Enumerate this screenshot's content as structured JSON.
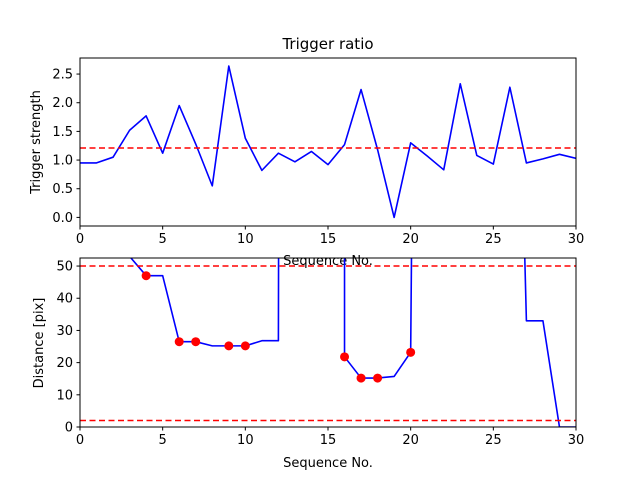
{
  "chart_data": [
    {
      "type": "line",
      "title": "Trigger ratio",
      "xlabel": "Sequence No.",
      "ylabel": "Trigger strength",
      "xlim": [
        0,
        30
      ],
      "ylim": [
        -0.15,
        2.78
      ],
      "xticks": [
        "0",
        "5",
        "10",
        "15",
        "20",
        "25",
        "30"
      ],
      "yticks": [
        "0.0",
        "0.5",
        "1.0",
        "1.5",
        "2.0",
        "2.5"
      ],
      "grid": false,
      "series": [
        {
          "color": "#0000ff",
          "x": [
            0,
            1,
            2,
            3,
            4,
            5,
            6,
            7,
            8,
            9,
            10,
            11,
            12,
            13,
            14,
            15,
            16,
            17,
            18,
            19,
            20,
            21,
            22,
            23,
            24,
            25,
            26,
            27,
            28,
            29,
            30
          ],
          "y": [
            0.95,
            0.95,
            1.05,
            1.52,
            1.77,
            1.12,
            1.95,
            1.28,
            0.55,
            2.64,
            1.38,
            0.82,
            1.12,
            0.97,
            1.15,
            0.92,
            1.27,
            2.23,
            1.18,
            0.0,
            1.3,
            1.07,
            0.83,
            2.33,
            1.08,
            0.93,
            2.27,
            0.95,
            1.02,
            1.1,
            1.03
          ]
        }
      ],
      "hlines": [
        {
          "y": 1.21,
          "color": "#ff0000",
          "style": "dashed"
        }
      ]
    },
    {
      "type": "line",
      "title": "",
      "xlabel": "Sequence No.",
      "ylabel": "Distance [pix]",
      "xlim": [
        0,
        30
      ],
      "ylim": [
        0,
        52.5
      ],
      "xticks": [
        "0",
        "5",
        "10",
        "15",
        "20",
        "25",
        "30"
      ],
      "yticks": [
        "0",
        "10",
        "20",
        "30",
        "40",
        "50"
      ],
      "grid": false,
      "series": [
        {
          "color": "#0000ff",
          "x": [
            3,
            4,
            5,
            6,
            7,
            8,
            9,
            10,
            11,
            12,
            12.01,
            12.5
          ],
          "y": [
            53,
            47,
            47,
            26.5,
            26.5,
            25.2,
            25.2,
            25.2,
            26.8,
            26.8,
            53,
            53
          ]
        },
        {
          "color": "#0000ff",
          "x": [
            16,
            16,
            17,
            18,
            19,
            20,
            20.05
          ],
          "y": [
            53,
            21.8,
            15.2,
            15.2,
            15.7,
            23.2,
            53
          ]
        },
        {
          "color": "#0000ff",
          "x": [
            26.9,
            27,
            28,
            29,
            30
          ],
          "y": [
            53,
            33,
            33,
            0,
            0
          ]
        }
      ],
      "markers": {
        "color": "#ff0000",
        "x": [
          4,
          6,
          7,
          9,
          10,
          16,
          17,
          18,
          20
        ],
        "y": [
          47,
          26.5,
          26.5,
          25.2,
          25.2,
          21.8,
          15.2,
          15.2,
          23.2
        ]
      },
      "hlines": [
        {
          "y": 50,
          "color": "#ff0000",
          "style": "dashed"
        },
        {
          "y": 2,
          "color": "#ff0000",
          "style": "dashed"
        }
      ]
    }
  ]
}
